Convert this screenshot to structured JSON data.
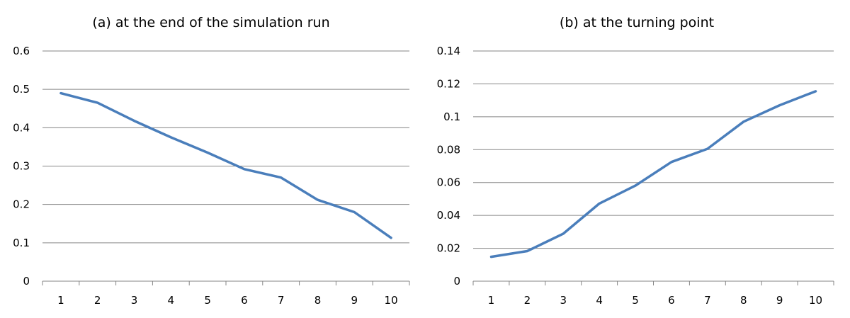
{
  "chart_data": [
    {
      "type": "line",
      "title": "(a) at the end of the simulation run",
      "xlabel": "",
      "ylabel": "",
      "categories": [
        "1",
        "2",
        "3",
        "4",
        "5",
        "6",
        "7",
        "8",
        "9",
        "10"
      ],
      "series": [
        {
          "values": [
            0.49,
            0.465,
            0.418,
            0.375,
            0.335,
            0.292,
            0.27,
            0.212,
            0.18,
            0.113
          ]
        }
      ],
      "ylim": [
        0,
        0.6
      ],
      "yticks": [
        "0",
        "0.1",
        "0.2",
        "0.3",
        "0.4",
        "0.5",
        "0.6"
      ],
      "grid": true,
      "legend": "none",
      "colors": {
        "series": "#4a7ebb",
        "grid": "#868686"
      }
    },
    {
      "type": "line",
      "title": "(b) at the turning point",
      "xlabel": "",
      "ylabel": "",
      "categories": [
        "1",
        "2",
        "3",
        "4",
        "5",
        "6",
        "7",
        "8",
        "9",
        "10"
      ],
      "series": [
        {
          "values": [
            0.0148,
            0.0183,
            0.0289,
            0.0472,
            0.0581,
            0.0725,
            0.0805,
            0.097,
            0.107,
            0.1155
          ]
        }
      ],
      "ylim": [
        0,
        0.14
      ],
      "yticks": [
        "0",
        "0.02",
        "0.04",
        "0.06",
        "0.08",
        "0.1",
        "0.12",
        "0.14"
      ],
      "grid": true,
      "legend": "none",
      "colors": {
        "series": "#4a7ebb",
        "grid": "#868686"
      }
    }
  ]
}
